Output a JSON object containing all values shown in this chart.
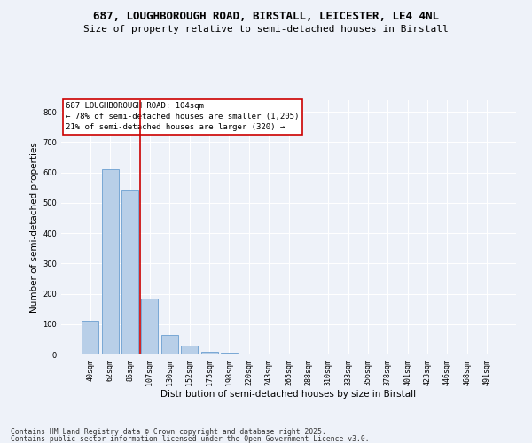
{
  "title_line1": "687, LOUGHBOROUGH ROAD, BIRSTALL, LEICESTER, LE4 4NL",
  "title_line2": "Size of property relative to semi-detached houses in Birstall",
  "xlabel": "Distribution of semi-detached houses by size in Birstall",
  "ylabel": "Number of semi-detached properties",
  "categories": [
    "40sqm",
    "62sqm",
    "85sqm",
    "107sqm",
    "130sqm",
    "152sqm",
    "175sqm",
    "198sqm",
    "220sqm",
    "243sqm",
    "265sqm",
    "288sqm",
    "310sqm",
    "333sqm",
    "356sqm",
    "378sqm",
    "401sqm",
    "423sqm",
    "446sqm",
    "468sqm",
    "491sqm"
  ],
  "values": [
    110,
    610,
    540,
    185,
    65,
    28,
    10,
    5,
    2,
    0,
    0,
    0,
    0,
    0,
    0,
    0,
    0,
    0,
    0,
    0,
    0
  ],
  "bar_color": "#b8cfe8",
  "bar_edge_color": "#6a9fd0",
  "vline_color": "#cc0000",
  "annotation_text": "687 LOUGHBOROUGH ROAD: 104sqm\n← 78% of semi-detached houses are smaller (1,205)\n21% of semi-detached houses are larger (320) →",
  "annotation_box_color": "#ffffff",
  "annotation_box_edge": "#cc0000",
  "ylim": [
    0,
    840
  ],
  "yticks": [
    0,
    100,
    200,
    300,
    400,
    500,
    600,
    700,
    800
  ],
  "footer_line1": "Contains HM Land Registry data © Crown copyright and database right 2025.",
  "footer_line2": "Contains public sector information licensed under the Open Government Licence v3.0.",
  "bg_color": "#eef2f9",
  "plot_bg_color": "#eef2f9",
  "grid_color": "#ffffff",
  "title_fontsize": 9,
  "subtitle_fontsize": 8,
  "axis_label_fontsize": 7.5,
  "tick_fontsize": 6,
  "annotation_fontsize": 6.5,
  "footer_fontsize": 5.8
}
